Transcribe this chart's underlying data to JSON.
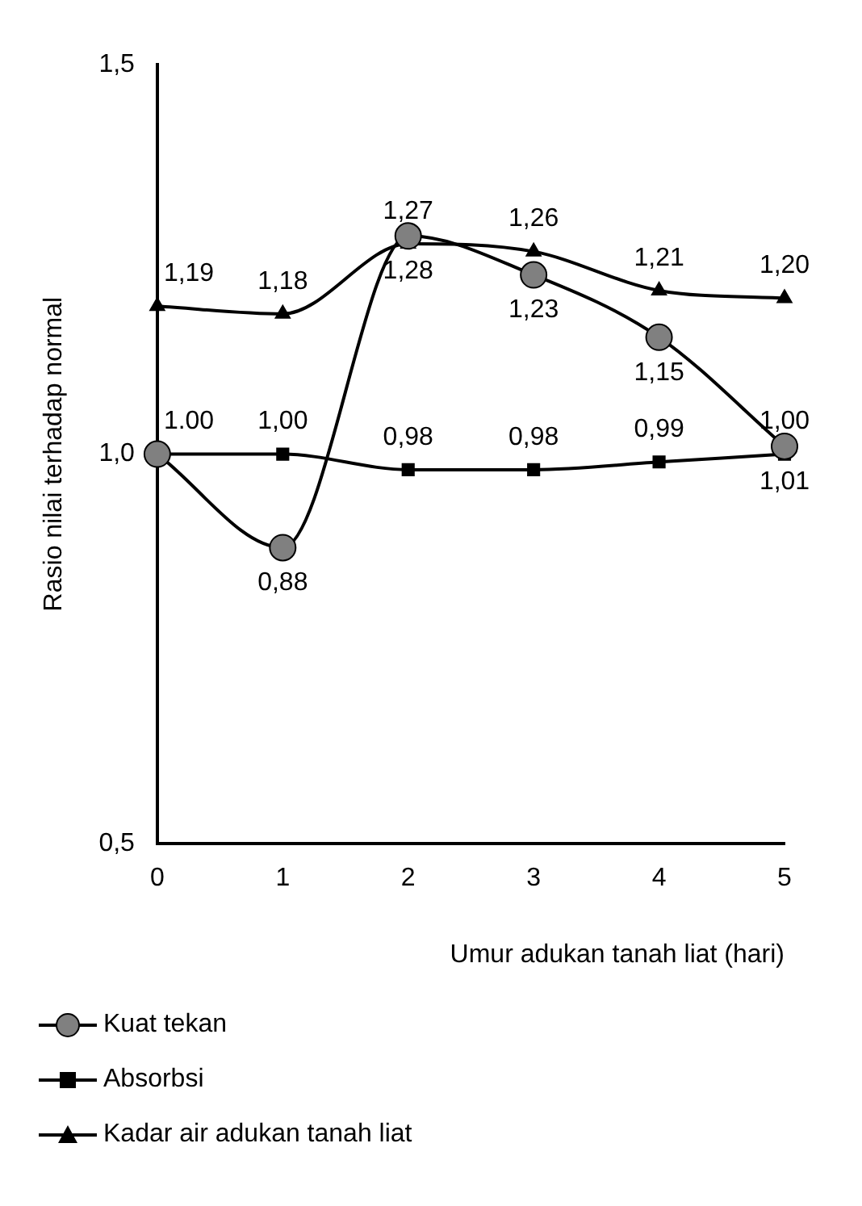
{
  "chart_data": {
    "type": "line",
    "ylabel": "Rasio nilai terhadap normal",
    "xlabel": "Umur adukan tanah liat (hari)",
    "categories": [
      "0",
      "1",
      "2",
      "3",
      "4",
      "5"
    ],
    "ylim": [
      0.5,
      1.5
    ],
    "yticks": [
      {
        "value": 0.5,
        "label": "0,5"
      },
      {
        "value": 1.0,
        "label": "1,0"
      },
      {
        "value": 1.5,
        "label": "1,5"
      }
    ],
    "grid": false,
    "legend": "bottom",
    "series": [
      {
        "name": "Kuat tekan",
        "color": "#808080",
        "marker": "circle",
        "values": [
          1.0,
          0.88,
          1.28,
          1.23,
          1.15,
          1.01
        ],
        "value_labels": [
          null,
          "0,88",
          "1,28",
          "1,23",
          "1,15",
          "1,01"
        ]
      },
      {
        "name": "Absorbsi",
        "color": "#000000",
        "marker": "square",
        "values": [
          1.0,
          1.0,
          0.98,
          0.98,
          0.99,
          1.0
        ],
        "value_labels": [
          "1.00",
          "1,00",
          "0,98",
          "0,98",
          "0,99",
          "1,00"
        ]
      },
      {
        "name": "Kadar air adukan tanah liat",
        "color": "#000000",
        "marker": "triangle",
        "values": [
          1.19,
          1.18,
          1.27,
          1.26,
          1.21,
          1.2
        ],
        "value_labels": [
          "1,19",
          "1,18",
          "1,27",
          "1,26",
          "1,21",
          "1,20"
        ]
      }
    ]
  }
}
